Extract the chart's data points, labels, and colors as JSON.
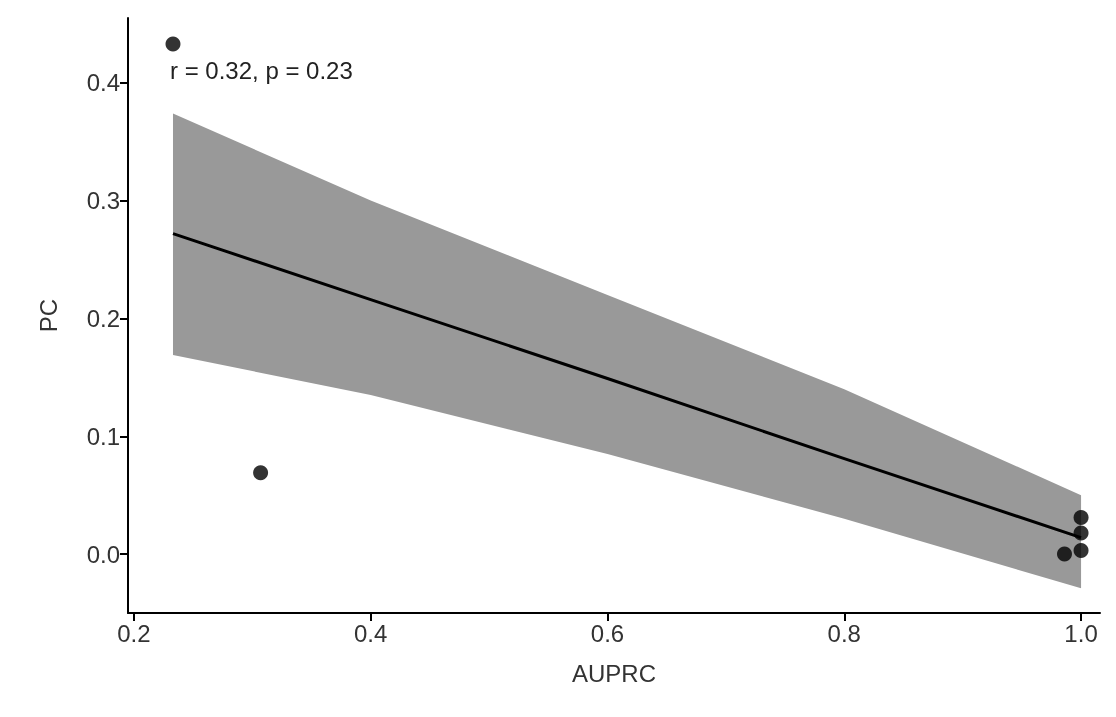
{
  "chart_data": {
    "type": "scatter",
    "xlabel": "AUPRC",
    "ylabel": "PC",
    "annotations": [
      "r = 0.32, p = 0.23"
    ],
    "xlim": [
      0.195,
      1.016
    ],
    "xticks": [
      0.2,
      0.4,
      0.6,
      0.8,
      {
        "value": 1,
        "label": "1.0"
      }
    ],
    "ylim": [
      -0.05,
      0.455
    ],
    "yticks": [
      {
        "value": 0,
        "label": "0.0"
      },
      0.1,
      0.2,
      0.3,
      0.4
    ],
    "grid": false,
    "series": [
      {
        "marker": "circle",
        "color": "#000000",
        "x": [
          0.233,
          0.307,
          0.986,
          1.0,
          1.0,
          1.0
        ],
        "values": [
          0.433,
          0.069,
          0.0,
          0.031,
          0.018,
          0.003
        ]
      },
      {
        "type": "line",
        "color": "#000000",
        "x": [
          0.233,
          0.4,
          0.6,
          0.8,
          1.0
        ],
        "values": [
          0.272,
          0.216,
          0.149,
          0.081,
          0.014
        ],
        "lower": [
          0.169,
          0.135,
          0.085,
          0.03,
          -0.029
        ],
        "upper": [
          0.374,
          0.3,
          0.22,
          0.14,
          0.05
        ]
      }
    ]
  }
}
